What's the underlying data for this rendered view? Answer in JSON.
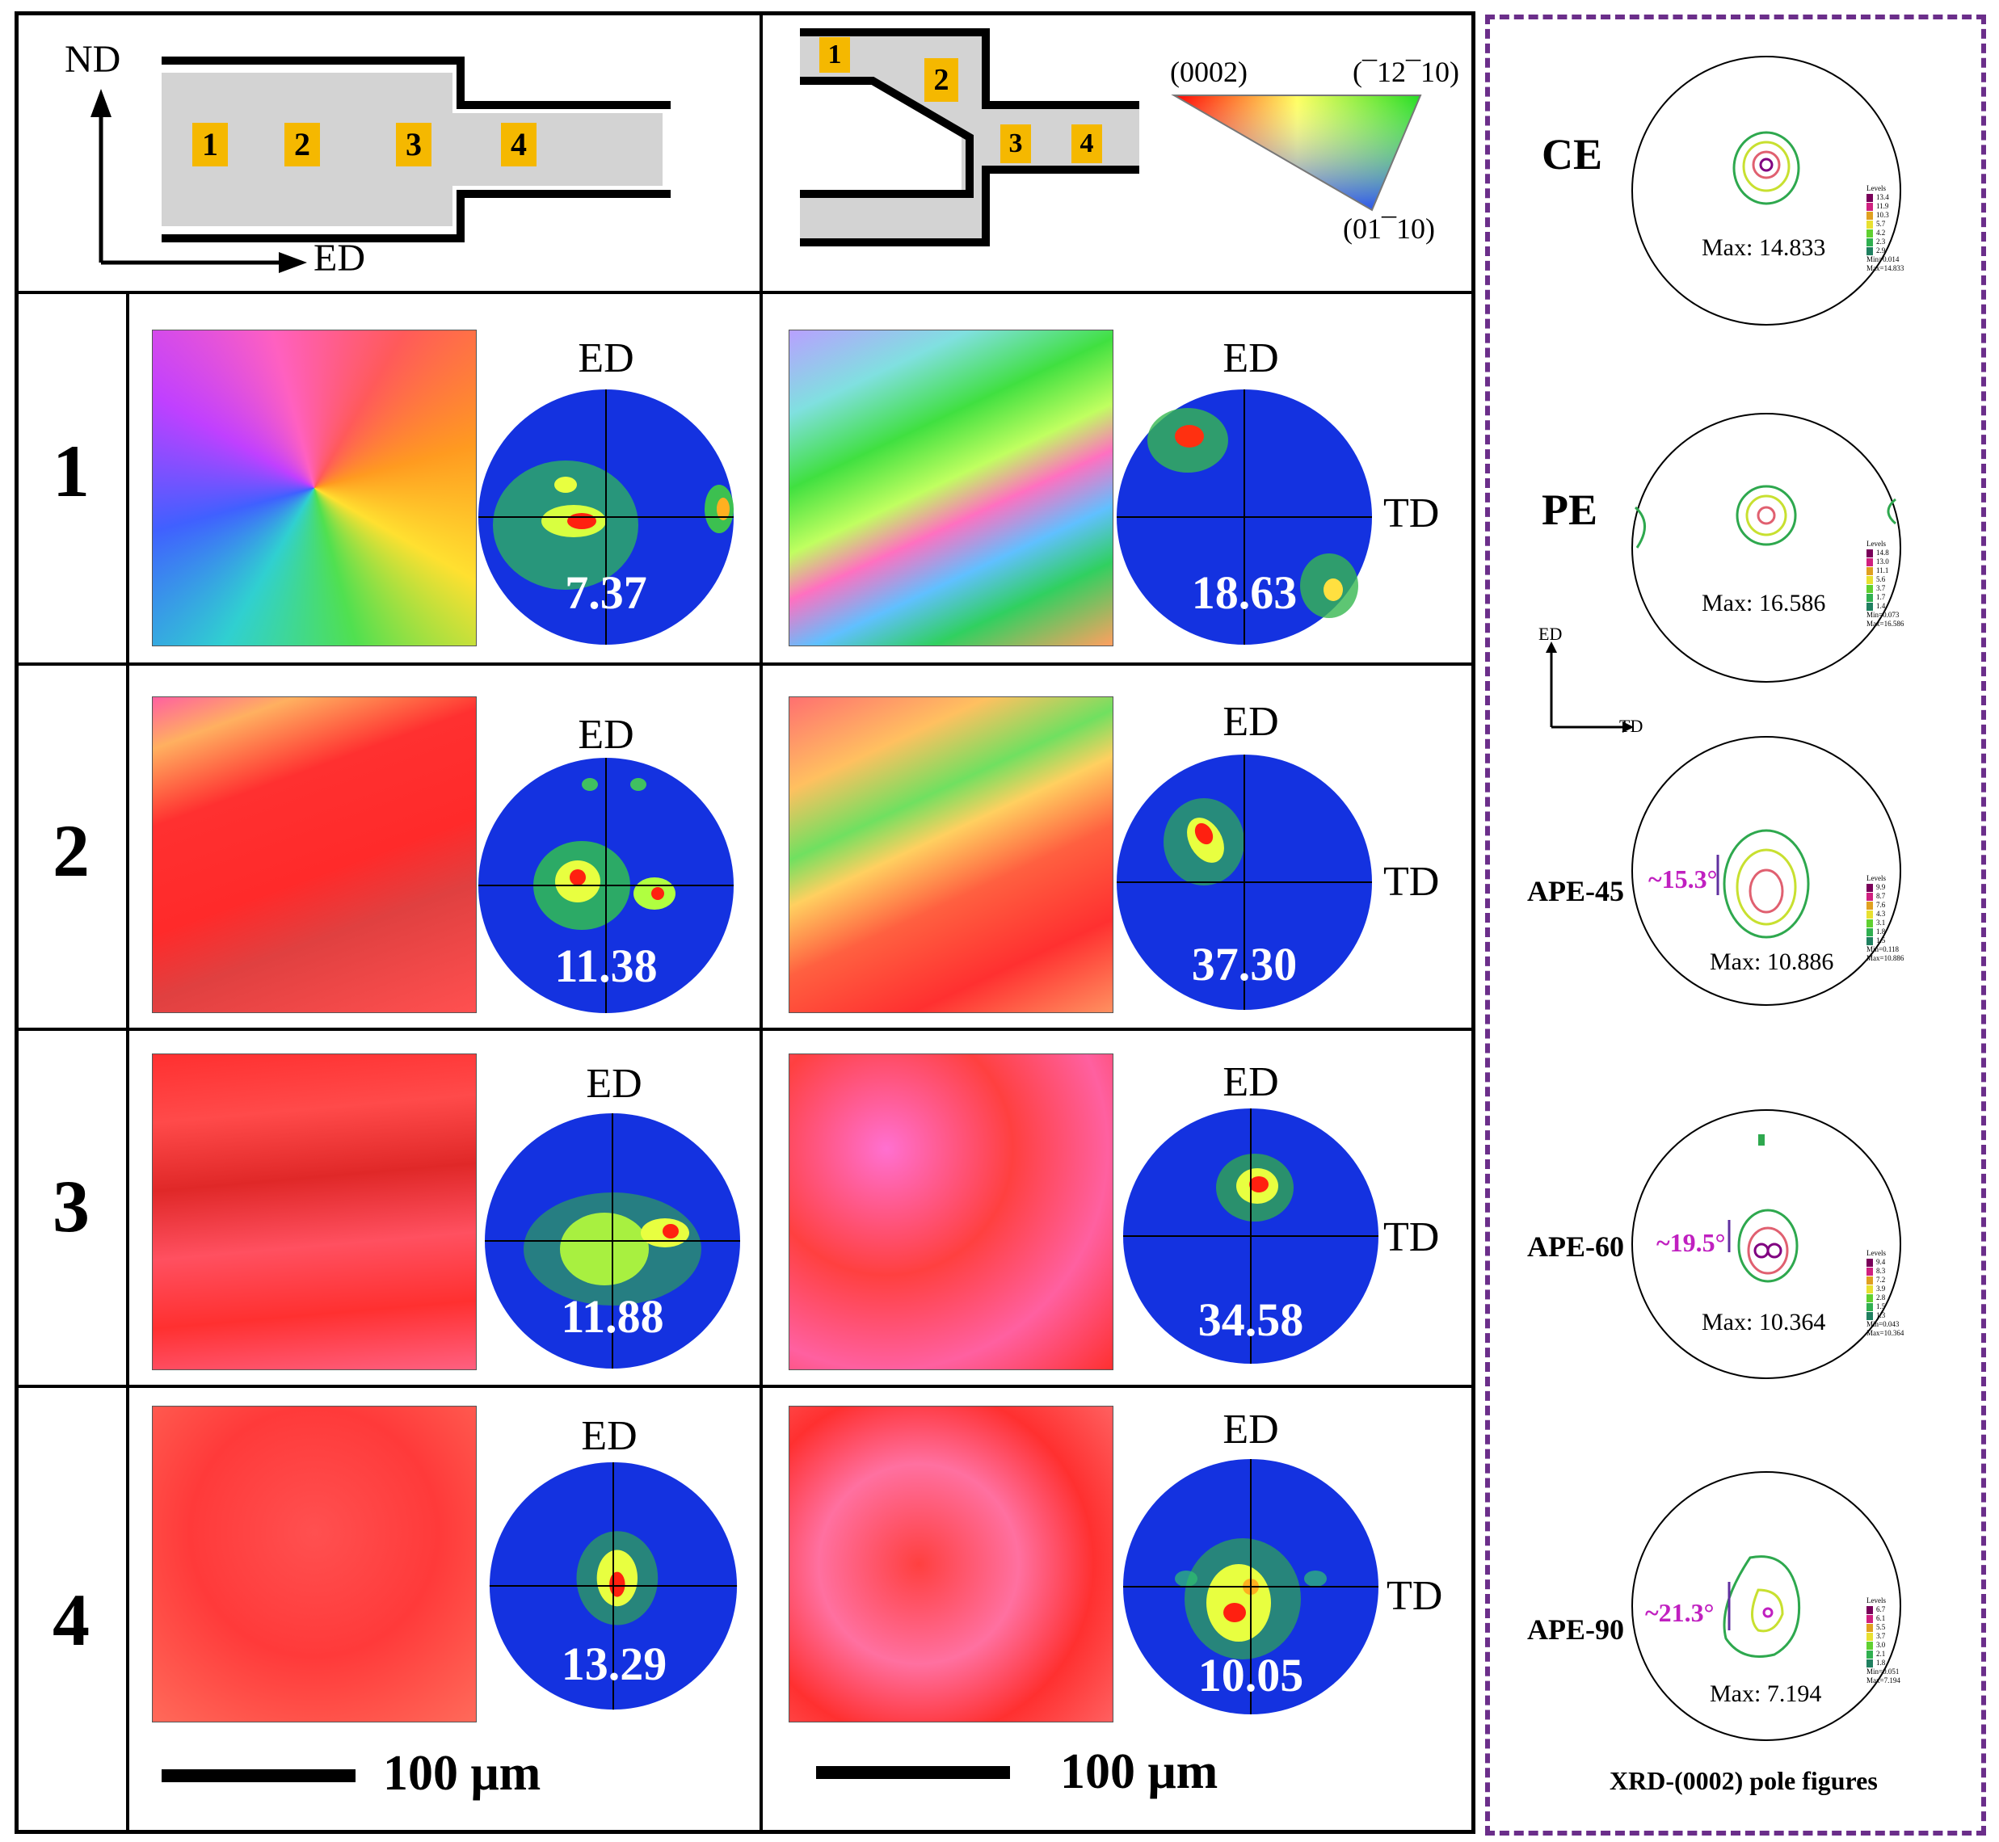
{
  "schematic_left": {
    "axis_nd": "ND",
    "axis_ed": "ED",
    "positions": [
      "1",
      "2",
      "3",
      "4"
    ]
  },
  "schematic_right": {
    "positions": [
      "1",
      "2",
      "3",
      "4"
    ],
    "ipf_key": {
      "top_left": "(0002)",
      "top_right": "(¯12¯10)",
      "bottom": "(01¯10)"
    }
  },
  "rows": [
    {
      "label": "1",
      "ce_max": "7.37",
      "ape_max": "18.63"
    },
    {
      "label": "2",
      "ce_max": "11.38",
      "ape_max": "37.30"
    },
    {
      "label": "3",
      "ce_max": "11.88",
      "ape_max": "34.58"
    },
    {
      "label": "4",
      "ce_max": "13.29",
      "ape_max": "10.05"
    }
  ],
  "pole_axis": {
    "top": "ED",
    "right": "TD"
  },
  "scale": {
    "left": "100 μm",
    "right": "100 μm"
  },
  "xrd": {
    "caption": "XRD-(0002) pole figures",
    "axis_ed": "ED",
    "axis_td": "TD",
    "levels_title": "Levels",
    "figures": [
      {
        "name": "CE",
        "max": "Max: 14.833",
        "angle": "",
        "levels": [
          "13.4",
          "11.9",
          "10.3",
          "5.7",
          "4.2",
          "2.3",
          "2.9"
        ],
        "min": "Min=0.014",
        "maxsmall": "Max=14.833"
      },
      {
        "name": "PE",
        "max": "Max: 16.586",
        "angle": "",
        "levels": [
          "14.8",
          "13.0",
          "11.1",
          "5.6",
          "3.7",
          "1.7",
          "1.4"
        ],
        "min": "Min=0.073",
        "maxsmall": "Max=16.586"
      },
      {
        "name": "APE-45",
        "max": "Max: 10.886",
        "angle": "~15.3°",
        "levels": [
          "9.9",
          "8.7",
          "7.6",
          "4.3",
          "3.1",
          "1.8",
          "1.5"
        ],
        "min": "Min=0.118",
        "maxsmall": "Max=10.886"
      },
      {
        "name": "APE-60",
        "max": "Max: 10.364",
        "angle": "~19.5°",
        "levels": [
          "9.4",
          "8.3",
          "7.2",
          "3.9",
          "2.8",
          "1.5",
          "1.3"
        ],
        "min": "Min=0.043",
        "maxsmall": "Max=10.364"
      },
      {
        "name": "APE-90",
        "max": "Max: 7.194",
        "angle": "~21.3°",
        "levels": [
          "6.7",
          "6.1",
          "5.5",
          "3.7",
          "3.0",
          "2.1",
          "1.8"
        ],
        "min": "Min=0.051",
        "maxsmall": "Max=7.194"
      }
    ]
  }
}
